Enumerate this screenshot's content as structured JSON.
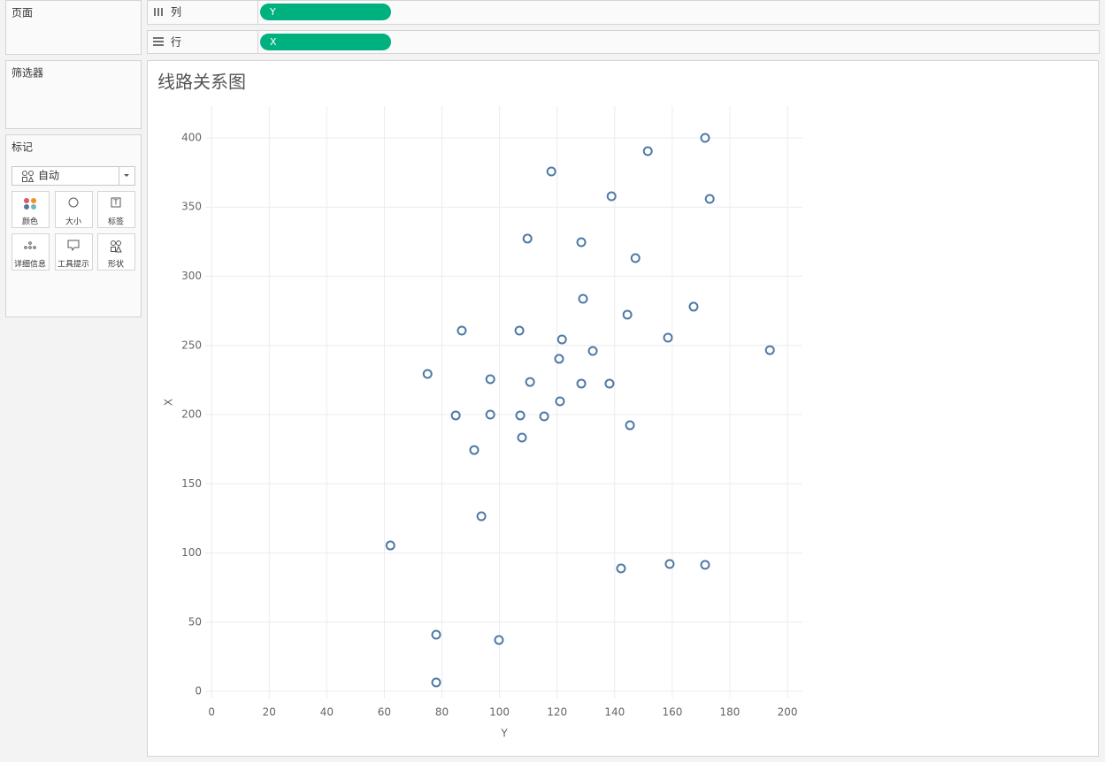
{
  "left_panel": {
    "pages": "页面",
    "filters": "筛选器",
    "marks": {
      "title": "标记",
      "mark_type": "自动",
      "buttons": [
        "颜色",
        "大小",
        "标签",
        "详细信息",
        "工具提示",
        "形状"
      ]
    }
  },
  "shelves": {
    "columns": {
      "label": "列",
      "pill": "Y"
    },
    "rows": {
      "label": "行",
      "pill": "X"
    }
  },
  "chart_data": {
    "type": "scatter",
    "title": "线路关系图",
    "x_label": "Y",
    "y_label": "X",
    "x": [
      171.4,
      151.5,
      118,
      138.9,
      173,
      109.7,
      128.4,
      147.2,
      129,
      167.4,
      144.4,
      86.9,
      106.9,
      158.5,
      121.7,
      132.4,
      193.9,
      120.7,
      75,
      96.8,
      110.6,
      128.4,
      138.2,
      121,
      84.8,
      96.8,
      107.2,
      115.5,
      145.3,
      107.8,
      91.2,
      93.7,
      62.1,
      142.2,
      159.1,
      171.4,
      78,
      99.8,
      78
    ],
    "values": [
      400,
      390.4,
      375.7,
      357.8,
      355.9,
      327.2,
      324.6,
      313.1,
      283.7,
      278,
      272.2,
      260.7,
      260.7,
      255.6,
      254.3,
      246,
      246.6,
      240.3,
      229.4,
      225.6,
      223.6,
      222.4,
      222.4,
      209.6,
      199.4,
      200,
      199.4,
      198.7,
      192.3,
      183.4,
      174.4,
      126.5,
      105.4,
      88.8,
      92,
      91.4,
      40.9,
      37.1,
      6.4
    ],
    "color": "#4e79a7",
    "xlim": [
      -2.2,
      205.2
    ],
    "ylim": [
      -5.1,
      423
    ],
    "xticks": [
      0,
      20,
      40,
      60,
      80,
      100,
      120,
      140,
      160,
      180,
      200
    ],
    "yticks": [
      0,
      50,
      100,
      150,
      200,
      250,
      300,
      350,
      400
    ],
    "grid": true
  }
}
